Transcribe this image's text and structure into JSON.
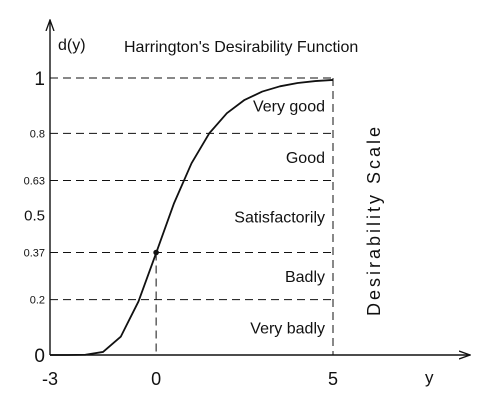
{
  "chart_data": {
    "type": "line",
    "title": "Harrington's Desirability Function",
    "ylabel": "d(y)",
    "xlabel": "y",
    "side_label": "Desirability Scale",
    "xlim": [
      -3,
      5
    ],
    "ylim": [
      0,
      1
    ],
    "x_ticks": [
      {
        "value": -3,
        "label": "-3"
      },
      {
        "value": 0,
        "label": "0"
      },
      {
        "value": 5,
        "label": "5"
      }
    ],
    "y_ticks": [
      {
        "value": 0,
        "label": "0"
      },
      {
        "value": 0.2,
        "label": "0.2"
      },
      {
        "value": 0.37,
        "label": "0.37"
      },
      {
        "value": 0.5,
        "label": "0.5"
      },
      {
        "value": 0.63,
        "label": "0.63"
      },
      {
        "value": 0.8,
        "label": "0.8"
      },
      {
        "value": 1,
        "label": "1"
      }
    ],
    "dashed_levels": [
      0.2,
      0.37,
      0.63,
      0.8,
      1
    ],
    "zones": [
      {
        "label": "Very good",
        "from": 0.8,
        "to": 1
      },
      {
        "label": "Good",
        "from": 0.63,
        "to": 0.8
      },
      {
        "label": "Satisfactorily",
        "from": 0.37,
        "to": 0.63
      },
      {
        "label": "Badly",
        "from": 0.2,
        "to": 0.37
      },
      {
        "label": "Very badly",
        "from": 0,
        "to": 0.2
      }
    ],
    "series": [
      {
        "x": [
          -3,
          -2.5,
          -2,
          -1.5,
          -1,
          -0.5,
          0,
          0.5,
          1,
          1.5,
          2,
          2.5,
          3,
          3.5,
          4,
          4.5,
          5
        ],
        "y": [
          0.0,
          0.0,
          0.001,
          0.011,
          0.066,
          0.193,
          0.368,
          0.546,
          0.692,
          0.8,
          0.873,
          0.921,
          0.951,
          0.97,
          0.982,
          0.989,
          0.993
        ]
      }
    ],
    "marker_point": {
      "x": 0,
      "y": 0.37
    },
    "colors": {
      "line": "#111111",
      "text": "#111111",
      "background": "#ffffff"
    }
  }
}
